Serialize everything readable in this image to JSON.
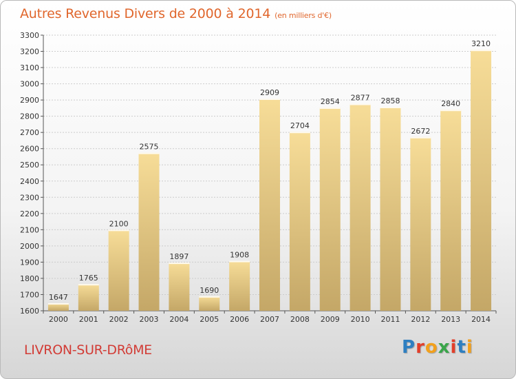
{
  "title": "Autres Revenus Divers de 2000 à 2014",
  "unit": "(en milliers d'€)",
  "city": "LIVRON-SUR-DRôME",
  "logo": {
    "letters": [
      "P",
      "r",
      "o",
      "x",
      "i",
      "t",
      "i"
    ],
    "colors": [
      "#2e7fc1",
      "#e23f2a",
      "#f2a01c",
      "#3aa54a",
      "#e23f2a",
      "#2e7fc1",
      "#f2a01c"
    ]
  },
  "colors": {
    "title": "#e0662c",
    "city": "#d23c36",
    "bar_top": "#f7dd98",
    "bar_bottom": "#c4a767",
    "grid": "#cccccc"
  },
  "chart_data": {
    "type": "bar",
    "categories": [
      "2000",
      "2001",
      "2002",
      "2003",
      "2004",
      "2005",
      "2006",
      "2007",
      "2008",
      "2009",
      "2010",
      "2011",
      "2012",
      "2013",
      "2014"
    ],
    "values": [
      1647,
      1765,
      2100,
      2575,
      1897,
      1690,
      1908,
      2909,
      2704,
      2854,
      2877,
      2858,
      2672,
      2840,
      3210
    ],
    "ylim": [
      1600,
      3300
    ],
    "ytick_step": 100,
    "yticks": [
      "1600",
      "1700",
      "1800",
      "1900",
      "2000",
      "2100",
      "2200",
      "2300",
      "2400",
      "2500",
      "2600",
      "2700",
      "2800",
      "2900",
      "3000",
      "3100",
      "3200",
      "3300"
    ],
    "grid": true,
    "data_labels": true
  }
}
